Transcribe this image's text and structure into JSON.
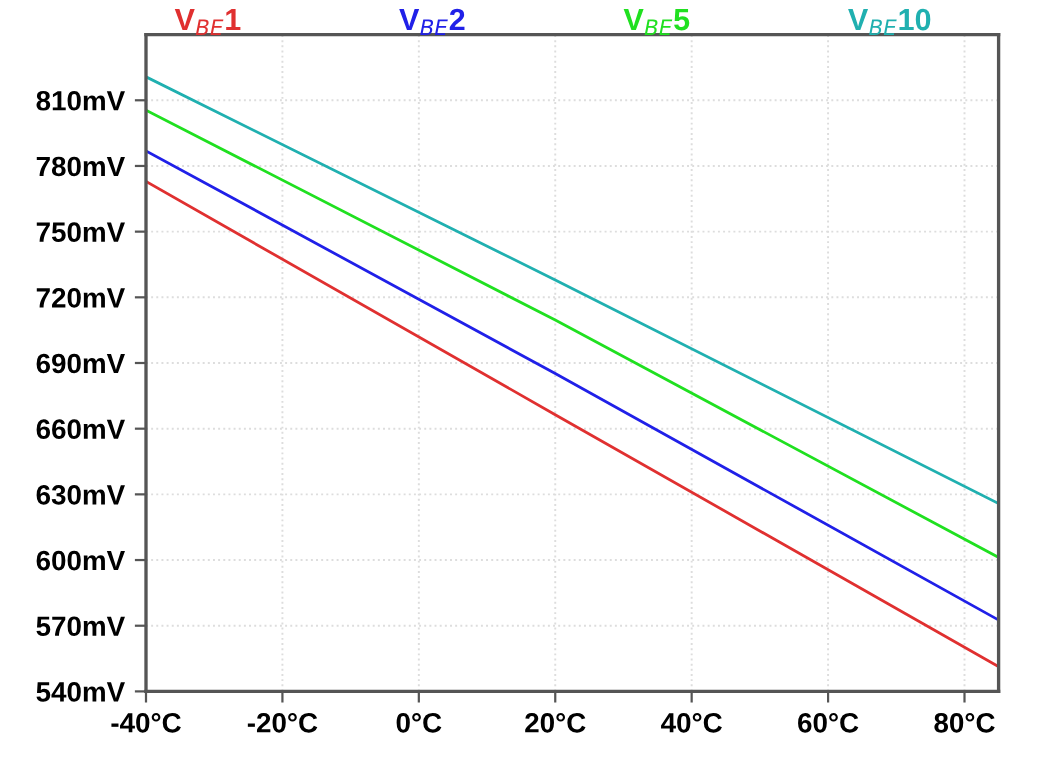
{
  "chart_data": {
    "type": "line",
    "x": [
      -40,
      20,
      85
    ],
    "series": [
      {
        "name": "V$_{BE}$1",
        "color": "#e03030",
        "values": [
          772.9,
          666.4,
          551.3
        ]
      },
      {
        "name": "V$_{BE}$2",
        "color": "#2020e8",
        "values": [
          786.9,
          685.2,
          572.6
        ]
      },
      {
        "name": "V$_{BE}$5",
        "color": "#20e020",
        "values": [
          805.5,
          709.6,
          601.2
        ]
      },
      {
        "name": "V$_{BE}$10",
        "color": "#20b0b0",
        "values": [
          820.7,
          727.9,
          625.8
        ]
      }
    ],
    "xlim": [
      -40,
      85
    ],
    "ylim": [
      540,
      840
    ],
    "xticks": [
      {
        "value": -40,
        "label": "-40°C"
      },
      {
        "value": -20,
        "label": "-20°C"
      },
      {
        "value": 0,
        "label": "0°C"
      },
      {
        "value": 20,
        "label": "20°C"
      },
      {
        "value": 40,
        "label": "40°C"
      },
      {
        "value": 60,
        "label": "60°C"
      },
      {
        "value": 80,
        "label": "80°C"
      }
    ],
    "yticks": [
      {
        "value": 540,
        "label": "540mV"
      },
      {
        "value": 570,
        "label": "570mV"
      },
      {
        "value": 600,
        "label": "600mV"
      },
      {
        "value": 630,
        "label": "630mV"
      },
      {
        "value": 660,
        "label": "660mV"
      },
      {
        "value": 690,
        "label": "690mV"
      },
      {
        "value": 720,
        "label": "720mV"
      },
      {
        "value": 750,
        "label": "750mV"
      },
      {
        "value": 780,
        "label": "780mV"
      },
      {
        "value": 810,
        "label": "810mV"
      }
    ],
    "grid": true,
    "legend": "top",
    "marker": "none",
    "line_style": "solid"
  }
}
